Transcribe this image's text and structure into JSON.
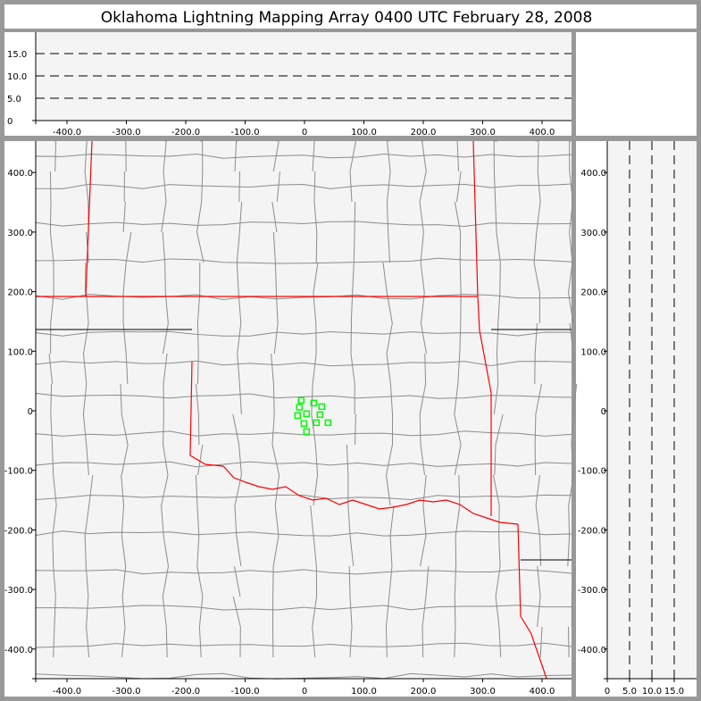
{
  "title": "Oklahoma Lightning Mapping Array   0400 UTC  February 28, 2008",
  "colors": {
    "points": "#00ff00",
    "state_border": "#ff0000",
    "county": "#8c8c8c",
    "plot_bg": "#f4f4f4"
  },
  "chart_data": [
    {
      "type": "scatter",
      "panel": "plan-view map",
      "xlim": [
        -450,
        450
      ],
      "ylim": [
        -450,
        450
      ],
      "x_ticks": [
        "-400.0",
        "-300.0",
        "-200.0",
        "-100.0",
        "0",
        "100.0",
        "200.0",
        "300.0",
        "400.0"
      ],
      "y_ticks": [
        "400.0",
        "300.0",
        "200.0",
        "100.0",
        "0",
        "-100.0",
        "-200.0",
        "-300.0",
        "-400.0"
      ],
      "x_tick_values": [
        -400,
        -300,
        -200,
        -100,
        0,
        100,
        200,
        300,
        400
      ],
      "y_tick_values": [
        400,
        300,
        200,
        100,
        0,
        -100,
        -200,
        -300,
        -400
      ],
      "points": [
        [
          -5.6,
          17.5
        ],
        [
          15.5,
          13
        ],
        [
          29,
          7
        ],
        [
          -8.6,
          6
        ],
        [
          3.5,
          -5
        ],
        [
          -11.6,
          -8
        ],
        [
          26,
          -6.5
        ],
        [
          -1,
          -21.5
        ],
        [
          20,
          -20
        ],
        [
          39.5,
          -20
        ],
        [
          3.5,
          -35
        ]
      ],
      "marker": "hollow-square"
    },
    {
      "type": "scatter",
      "panel": "east-west vs altitude",
      "xlim": [
        -450,
        450
      ],
      "ylim": [
        0,
        20
      ],
      "x_ticks": [
        "-400.0",
        "-300.0",
        "-200.0",
        "-100.0",
        "0",
        "100.0",
        "200.0",
        "300.0",
        "400.0"
      ],
      "y_ticks": [
        "15.0",
        "10.0",
        "5.0",
        "0"
      ],
      "y_tick_values": [
        15,
        10,
        5,
        0
      ],
      "dashed_gridlines": [
        5,
        10,
        15
      ]
    },
    {
      "type": "scatter",
      "panel": "altitude vs north-south",
      "xlim": [
        0,
        20
      ],
      "ylim": [
        -450,
        450
      ],
      "x_ticks": [
        "0",
        "5.0",
        "10.0",
        "15.0"
      ],
      "x_tick_values": [
        0,
        5,
        10,
        15
      ],
      "y_ticks": [
        "400.0",
        "300.0",
        "200.0",
        "100.0",
        "0",
        "-100.0",
        "-200.0",
        "-300.0",
        "-400.0"
      ],
      "dashed_gridlines": [
        5,
        10,
        15
      ]
    }
  ]
}
